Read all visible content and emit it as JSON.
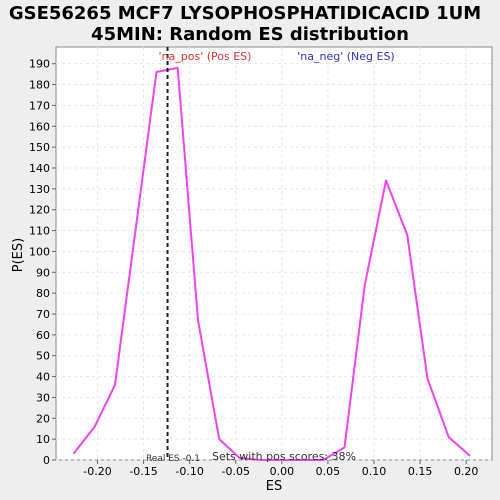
{
  "chart_data": {
    "type": "line",
    "title_line1": "GSE56265 MCF7 LYSOPHOSPHATIDICACID  1UM",
    "title_line2": "45MIN: Random ES distribution",
    "xlabel": "ES",
    "ylabel": "P(ES)",
    "xlim": [
      -0.245,
      0.228
    ],
    "ylim": [
      0,
      198
    ],
    "xticks": [
      -0.2,
      -0.15,
      -0.1,
      -0.05,
      0.0,
      0.05,
      0.1,
      0.15,
      0.2
    ],
    "xtick_labels": [
      "-0.20",
      "-0.15",
      "-0.10",
      "-0.05",
      "0.00",
      "0.05",
      "0.10",
      "0.15",
      "0.20"
    ],
    "yticks": [
      0,
      10,
      20,
      30,
      40,
      50,
      60,
      70,
      80,
      90,
      100,
      110,
      120,
      130,
      140,
      150,
      160,
      170,
      180,
      190
    ],
    "ytick_labels": [
      "0",
      "10",
      "20",
      "30",
      "40",
      "50",
      "60",
      "70",
      "80",
      "90",
      "100",
      "110",
      "120",
      "130",
      "140",
      "150",
      "160",
      "170",
      "180",
      "190"
    ],
    "grid": true,
    "legend": {
      "pos_label": "'na_pos' (Pos ES)",
      "neg_label": "'na_neg' (Neg ES)",
      "pos_color": "#e03030",
      "neg_color": "#3030c0"
    },
    "series": [
      {
        "color": "#ee44ee",
        "x": [
          -0.226,
          -0.203,
          -0.181,
          -0.136,
          -0.113,
          -0.091,
          -0.068,
          -0.046,
          -0.023,
          0.0,
          0.023,
          0.045,
          0.068,
          0.09,
          0.113,
          0.136,
          0.158,
          0.181,
          0.204
        ],
        "y": [
          3,
          16,
          36,
          186,
          188,
          67,
          10,
          1,
          0,
          0,
          0,
          0,
          6,
          84,
          134,
          108,
          39,
          11,
          2
        ]
      }
    ],
    "real_es": {
      "x": -0.124,
      "label": "Real ES -0.1"
    },
    "annotation": "Sets with pos scores: 38%"
  }
}
